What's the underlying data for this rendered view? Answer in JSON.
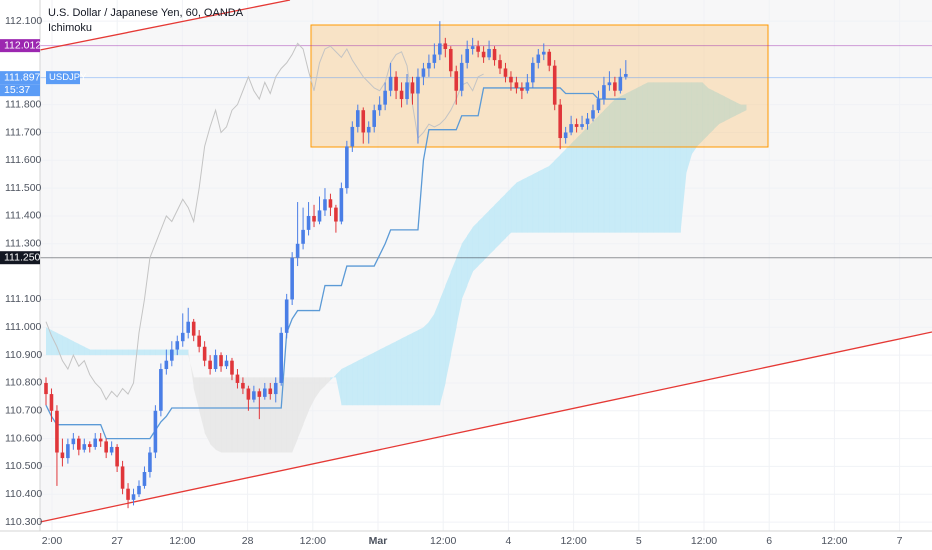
{
  "chart_data": {
    "type": "candlestick",
    "title": "U.S. Dollar / Japanese Yen, 60, OANDA",
    "up_color": "#4a7ee6",
    "down_color": "#e0363a",
    "ylim": [
      110.268,
      112.176
    ],
    "grid": true,
    "yticks": [
      {
        "value": 112.1,
        "label": "112.100"
      },
      {
        "value": 111.8,
        "label": "111.800"
      },
      {
        "value": 111.7,
        "label": "111.700"
      },
      {
        "value": 111.6,
        "label": "111.600"
      },
      {
        "value": 111.5,
        "label": "111.500"
      },
      {
        "value": 111.4,
        "label": "111.400"
      },
      {
        "value": 111.3,
        "label": "111.300"
      },
      {
        "value": 111.1,
        "label": "111.100"
      },
      {
        "value": 111.0,
        "label": "111.000"
      },
      {
        "value": 110.9,
        "label": "110.900"
      },
      {
        "value": 110.8,
        "label": "110.800"
      },
      {
        "value": 110.7,
        "label": "110.700"
      },
      {
        "value": 110.6,
        "label": "110.600"
      },
      {
        "value": 110.5,
        "label": "110.500"
      },
      {
        "value": 110.4,
        "label": "110.400"
      },
      {
        "value": 110.3,
        "label": "110.300"
      }
    ],
    "xticks": [
      "2:00",
      "27",
      "12:00",
      "28",
      "12:00",
      "Mar",
      "12:00",
      "4",
      "12:00",
      "5",
      "12:00",
      "6",
      "12:00",
      "7"
    ],
    "price_labels": [
      {
        "value": 112.012,
        "label": "112.012",
        "color": "#9c27b0"
      },
      {
        "value": 111.897,
        "label": "111.897",
        "color": "#5b9cf6",
        "name": "USDJPY",
        "time": "15:37"
      },
      {
        "value": 111.25,
        "label": "111.250",
        "color": "#131722"
      }
    ],
    "ichimoku": {
      "name": "Ichimoku",
      "base_color": "#5b9ad6",
      "lagging_color": "#c4c4c4",
      "bull_cloud_color": "#bfe9f7",
      "bear_cloud_color": "#e6e6e6",
      "base": [
        110.72,
        110.68,
        110.65,
        110.65,
        110.65,
        110.65,
        110.65,
        110.65,
        110.65,
        110.65,
        110.65,
        110.6,
        110.6,
        110.6,
        110.6,
        110.6,
        110.6,
        110.6,
        110.6,
        110.6,
        110.63,
        110.66,
        110.68,
        110.71,
        110.71,
        110.71,
        110.71,
        110.71,
        110.71,
        110.71,
        110.71,
        110.71,
        110.71,
        110.71,
        110.71,
        110.71,
        110.71,
        110.71,
        110.71,
        110.71,
        110.71,
        110.71,
        110.71,
        110.71,
        110.98,
        111.03,
        111.06,
        111.06,
        111.06,
        111.06,
        111.06,
        111.15,
        111.15,
        111.15,
        111.15,
        111.22,
        111.22,
        111.22,
        111.22,
        111.22,
        111.22,
        111.26,
        111.3,
        111.35,
        111.35,
        111.35,
        111.35,
        111.35,
        111.35,
        111.6,
        111.71,
        111.71,
        111.71,
        111.71,
        111.71,
        111.71,
        111.76,
        111.76,
        111.76,
        111.76,
        111.86,
        111.86,
        111.86,
        111.86,
        111.86,
        111.86,
        111.86,
        111.86,
        111.86,
        111.86,
        111.86,
        111.86,
        111.86,
        111.86,
        111.86,
        111.84,
        111.84,
        111.84,
        111.84,
        111.84,
        111.84,
        111.82,
        111.82,
        111.82,
        111.82,
        111.82,
        111.82
      ],
      "lagging": [
        111.02,
        110.97,
        110.93,
        110.88,
        110.85,
        110.9,
        110.86,
        110.88,
        110.83,
        110.8,
        110.78,
        110.74,
        110.77,
        110.75,
        110.78,
        110.76,
        110.8,
        110.98,
        111.1,
        111.25,
        111.3,
        111.35,
        111.4,
        111.38,
        111.42,
        111.46,
        111.43,
        111.38,
        111.5,
        111.65,
        111.72,
        111.78,
        111.7,
        111.72,
        111.78,
        111.8,
        111.85,
        111.9,
        111.85,
        111.82,
        111.88,
        111.84,
        111.9,
        111.93,
        111.95,
        111.98,
        112.02,
        112.0,
        111.92,
        111.85,
        111.95,
        112.0,
        112.01,
        111.99,
        111.97,
        112.0,
        111.96,
        111.93,
        111.9,
        111.88,
        111.86,
        111.85,
        111.88,
        111.95,
        111.98,
        111.99,
        111.94,
        111.8,
        111.68,
        111.7,
        111.73,
        111.72,
        111.73,
        111.75,
        111.78,
        111.82,
        111.87,
        111.88,
        111.85,
        111.9,
        111.91
      ],
      "span_a": [
        111.0,
        110.99,
        110.98,
        110.97,
        110.96,
        110.95,
        110.94,
        110.93,
        110.92,
        110.92,
        110.92,
        110.92,
        110.92,
        110.92,
        110.92,
        110.92,
        110.92,
        110.92,
        110.92,
        110.92,
        110.92,
        110.92,
        110.92,
        110.92,
        110.92,
        110.92,
        110.92,
        110.78,
        110.7,
        110.62,
        110.58,
        110.56,
        110.55,
        110.55,
        110.55,
        110.55,
        110.55,
        110.55,
        110.55,
        110.55,
        110.55,
        110.55,
        110.55,
        110.55,
        110.55,
        110.55,
        110.6,
        110.65,
        110.7,
        110.74,
        110.77,
        110.79,
        110.81,
        110.83,
        110.85,
        110.86,
        110.87,
        110.88,
        110.89,
        110.9,
        110.91,
        110.92,
        110.93,
        110.94,
        110.95,
        110.96,
        110.97,
        110.98,
        110.99,
        111.0,
        111.02,
        111.05,
        111.1,
        111.15,
        111.2,
        111.25,
        111.3,
        111.33,
        111.36,
        111.38,
        111.4,
        111.42,
        111.44,
        111.46,
        111.48,
        111.5,
        111.52,
        111.53,
        111.54,
        111.55,
        111.56,
        111.57,
        111.58,
        111.6,
        111.62,
        111.64,
        111.66,
        111.68,
        111.7,
        111.72,
        111.74,
        111.76,
        111.78,
        111.8,
        111.82,
        111.83,
        111.84,
        111.85,
        111.86,
        111.87,
        111.88,
        111.88,
        111.88,
        111.88,
        111.88,
        111.88,
        111.88,
        111.88,
        111.88,
        111.88,
        111.88,
        111.86,
        111.85,
        111.84,
        111.83,
        111.82,
        111.81,
        111.8,
        111.8,
        111.81,
        111.82,
        111.82,
        111.82
      ],
      "span_b": [
        110.9,
        110.9,
        110.9,
        110.9,
        110.9,
        110.9,
        110.9,
        110.9,
        110.9,
        110.9,
        110.9,
        110.9,
        110.9,
        110.9,
        110.9,
        110.9,
        110.9,
        110.9,
        110.9,
        110.9,
        110.9,
        110.9,
        110.9,
        110.9,
        110.9,
        110.9,
        110.9,
        110.82,
        110.82,
        110.82,
        110.82,
        110.82,
        110.82,
        110.82,
        110.82,
        110.82,
        110.82,
        110.82,
        110.82,
        110.82,
        110.82,
        110.82,
        110.82,
        110.82,
        110.82,
        110.82,
        110.82,
        110.82,
        110.82,
        110.82,
        110.82,
        110.82,
        110.82,
        110.82,
        110.72,
        110.72,
        110.72,
        110.72,
        110.72,
        110.72,
        110.72,
        110.72,
        110.72,
        110.72,
        110.72,
        110.72,
        110.72,
        110.72,
        110.72,
        110.72,
        110.72,
        110.72,
        110.72,
        110.8,
        110.9,
        111.0,
        111.1,
        111.15,
        111.2,
        111.22,
        111.24,
        111.26,
        111.28,
        111.3,
        111.32,
        111.34,
        111.34,
        111.34,
        111.34,
        111.34,
        111.34,
        111.34,
        111.34,
        111.34,
        111.34,
        111.34,
        111.34,
        111.34,
        111.34,
        111.34,
        111.34,
        111.34,
        111.34,
        111.34,
        111.34,
        111.34,
        111.34,
        111.34,
        111.34,
        111.34,
        111.34,
        111.34,
        111.34,
        111.34,
        111.34,
        111.34,
        111.34,
        111.55,
        111.62,
        111.65,
        111.67,
        111.69,
        111.71,
        111.73,
        111.74,
        111.75,
        111.76,
        111.77,
        111.78
      ]
    },
    "ohlc": [
      [
        110.8,
        110.82,
        110.72,
        110.76
      ],
      [
        110.76,
        110.78,
        110.66,
        110.7
      ],
      [
        110.7,
        110.72,
        110.43,
        110.55
      ],
      [
        110.55,
        110.6,
        110.5,
        110.53
      ],
      [
        110.53,
        110.6,
        110.51,
        110.58
      ],
      [
        110.58,
        110.62,
        110.56,
        110.6
      ],
      [
        110.6,
        110.61,
        110.54,
        110.56
      ],
      [
        110.56,
        110.6,
        110.55,
        110.58
      ],
      [
        110.58,
        110.59,
        110.55,
        110.57
      ],
      [
        110.57,
        110.62,
        110.56,
        110.6
      ],
      [
        110.6,
        110.62,
        110.57,
        110.59
      ],
      [
        110.59,
        110.6,
        110.53,
        110.55
      ],
      [
        110.55,
        110.59,
        110.54,
        110.57
      ],
      [
        110.57,
        110.58,
        110.48,
        110.5
      ],
      [
        110.5,
        110.52,
        110.4,
        110.42
      ],
      [
        110.42,
        110.44,
        110.35,
        110.38
      ],
      [
        110.38,
        110.42,
        110.36,
        110.4
      ],
      [
        110.4,
        110.45,
        110.39,
        110.43
      ],
      [
        110.43,
        110.5,
        110.42,
        110.48
      ],
      [
        110.48,
        110.57,
        110.46,
        110.55
      ],
      [
        110.55,
        110.72,
        110.53,
        110.7
      ],
      [
        110.7,
        110.87,
        110.68,
        110.85
      ],
      [
        110.85,
        110.92,
        110.83,
        110.88
      ],
      [
        110.88,
        110.95,
        110.86,
        110.92
      ],
      [
        110.92,
        110.97,
        110.9,
        110.95
      ],
      [
        110.95,
        111.05,
        110.93,
        110.98
      ],
      [
        110.98,
        111.07,
        110.96,
        111.02
      ],
      [
        111.02,
        111.03,
        110.95,
        110.97
      ],
      [
        110.97,
        110.99,
        110.91,
        110.93
      ],
      [
        110.93,
        110.95,
        110.86,
        110.88
      ],
      [
        110.88,
        110.9,
        110.83,
        110.85
      ],
      [
        110.85,
        110.92,
        110.84,
        110.9
      ],
      [
        110.9,
        110.91,
        110.84,
        110.86
      ],
      [
        110.86,
        110.9,
        110.85,
        110.88
      ],
      [
        110.88,
        110.89,
        110.81,
        110.83
      ],
      [
        110.83,
        110.85,
        110.78,
        110.8
      ],
      [
        110.8,
        110.82,
        110.76,
        110.78
      ],
      [
        110.78,
        110.79,
        110.7,
        110.74
      ],
      [
        110.74,
        110.79,
        110.73,
        110.77
      ],
      [
        110.77,
        110.78,
        110.67,
        110.75
      ],
      [
        110.75,
        110.8,
        110.74,
        110.78
      ],
      [
        110.78,
        110.8,
        110.74,
        110.76
      ],
      [
        110.76,
        110.82,
        110.73,
        110.8
      ],
      [
        110.8,
        111.0,
        110.79,
        110.98
      ],
      [
        110.98,
        111.12,
        110.96,
        111.1
      ],
      [
        111.1,
        111.27,
        111.08,
        111.25
      ],
      [
        111.25,
        111.45,
        111.22,
        111.3
      ],
      [
        111.3,
        111.43,
        111.28,
        111.35
      ],
      [
        111.35,
        111.45,
        111.33,
        111.4
      ],
      [
        111.4,
        111.44,
        111.36,
        111.38
      ],
      [
        111.38,
        111.47,
        111.37,
        111.42
      ],
      [
        111.42,
        111.5,
        111.4,
        111.46
      ],
      [
        111.46,
        111.48,
        111.4,
        111.43
      ],
      [
        111.43,
        111.44,
        111.34,
        111.38
      ],
      [
        111.38,
        111.52,
        111.37,
        111.5
      ],
      [
        111.5,
        111.67,
        111.48,
        111.65
      ],
      [
        111.65,
        111.74,
        111.63,
        111.72
      ],
      [
        111.72,
        111.8,
        111.7,
        111.78
      ],
      [
        111.78,
        111.79,
        111.66,
        111.7
      ],
      [
        111.7,
        111.74,
        111.66,
        111.72
      ],
      [
        111.72,
        111.8,
        111.7,
        111.78
      ],
      [
        111.78,
        111.83,
        111.76,
        111.8
      ],
      [
        111.8,
        111.88,
        111.78,
        111.85
      ],
      [
        111.85,
        111.95,
        111.83,
        111.9
      ],
      [
        111.9,
        111.92,
        111.82,
        111.85
      ],
      [
        111.85,
        111.88,
        111.79,
        111.82
      ],
      [
        111.82,
        111.91,
        111.8,
        111.88
      ],
      [
        111.88,
        111.9,
        111.8,
        111.84
      ],
      [
        111.84,
        111.93,
        111.66,
        111.9
      ],
      [
        111.9,
        111.95,
        111.87,
        111.93
      ],
      [
        111.93,
        111.98,
        111.9,
        111.95
      ],
      [
        111.95,
        112.02,
        111.93,
        111.98
      ],
      [
        111.98,
        112.1,
        111.96,
        112.02
      ],
      [
        112.02,
        112.04,
        111.97,
        112.0
      ],
      [
        112.0,
        112.01,
        111.9,
        111.92
      ],
      [
        111.92,
        111.94,
        111.8,
        111.85
      ],
      [
        111.85,
        111.98,
        111.83,
        111.95
      ],
      [
        111.95,
        112.03,
        111.93,
        112.0
      ],
      [
        112.0,
        112.04,
        111.98,
        112.01
      ],
      [
        112.01,
        112.03,
        111.97,
        111.99
      ],
      [
        111.99,
        112.01,
        111.95,
        111.97
      ],
      [
        111.97,
        112.03,
        111.96,
        112.0
      ],
      [
        112.0,
        112.01,
        111.94,
        111.96
      ],
      [
        111.96,
        111.98,
        111.91,
        111.93
      ],
      [
        111.93,
        111.95,
        111.88,
        111.9
      ],
      [
        111.9,
        111.92,
        111.85,
        111.88
      ],
      [
        111.88,
        111.9,
        111.84,
        111.86
      ],
      [
        111.86,
        111.88,
        111.82,
        111.85
      ],
      [
        111.85,
        111.91,
        111.84,
        111.88
      ],
      [
        111.88,
        111.97,
        111.86,
        111.95
      ],
      [
        111.95,
        112.0,
        111.93,
        111.98
      ],
      [
        111.98,
        112.02,
        111.96,
        111.99
      ],
      [
        111.99,
        112.0,
        111.92,
        111.94
      ],
      [
        111.94,
        111.96,
        111.78,
        111.8
      ],
      [
        111.8,
        111.82,
        111.64,
        111.68
      ],
      [
        111.68,
        111.72,
        111.66,
        111.7
      ],
      [
        111.7,
        111.76,
        111.69,
        111.73
      ],
      [
        111.73,
        111.75,
        111.7,
        111.72
      ],
      [
        111.72,
        111.76,
        111.71,
        111.73
      ],
      [
        111.73,
        111.77,
        111.71,
        111.75
      ],
      [
        111.75,
        111.8,
        111.74,
        111.78
      ],
      [
        111.78,
        111.85,
        111.77,
        111.82
      ],
      [
        111.82,
        111.9,
        111.8,
        111.87
      ],
      [
        111.87,
        111.92,
        111.85,
        111.88
      ],
      [
        111.88,
        111.9,
        111.83,
        111.85
      ],
      [
        111.85,
        111.93,
        111.84,
        111.9
      ],
      [
        111.9,
        111.96,
        111.89,
        111.91
      ]
    ]
  }
}
